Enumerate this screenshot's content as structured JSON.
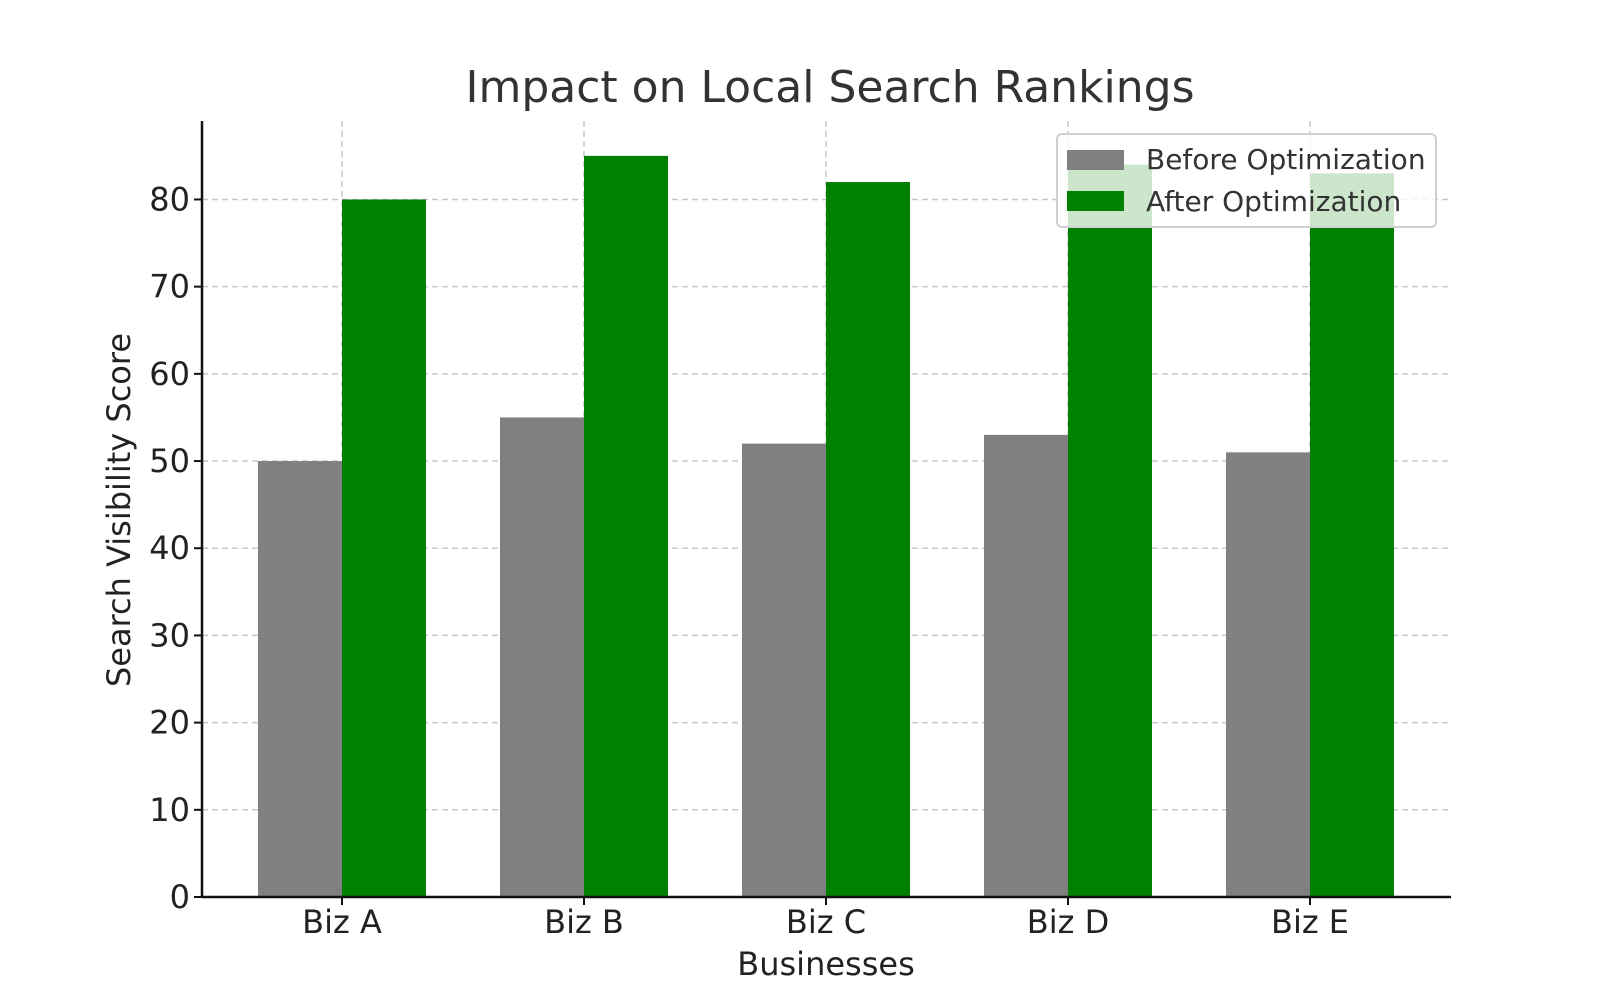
{
  "chart_data": {
    "type": "bar",
    "title": "Impact on Local Search Rankings",
    "xlabel": "Businesses",
    "ylabel": "Search Visibility Score",
    "categories": [
      "Biz A",
      "Biz B",
      "Biz C",
      "Biz D",
      "Biz E"
    ],
    "series": [
      {
        "name": "Before Optimization",
        "color": "#808080",
        "values": [
          50,
          55,
          52,
          53,
          51
        ]
      },
      {
        "name": "After Optimization",
        "color": "#008000",
        "values": [
          80,
          85,
          82,
          84,
          83
        ]
      }
    ],
    "ylim": [
      0,
      89
    ],
    "yticks": [
      0,
      10,
      20,
      30,
      40,
      50,
      60,
      70,
      80
    ],
    "grid": true,
    "legend_position": "top-right"
  }
}
